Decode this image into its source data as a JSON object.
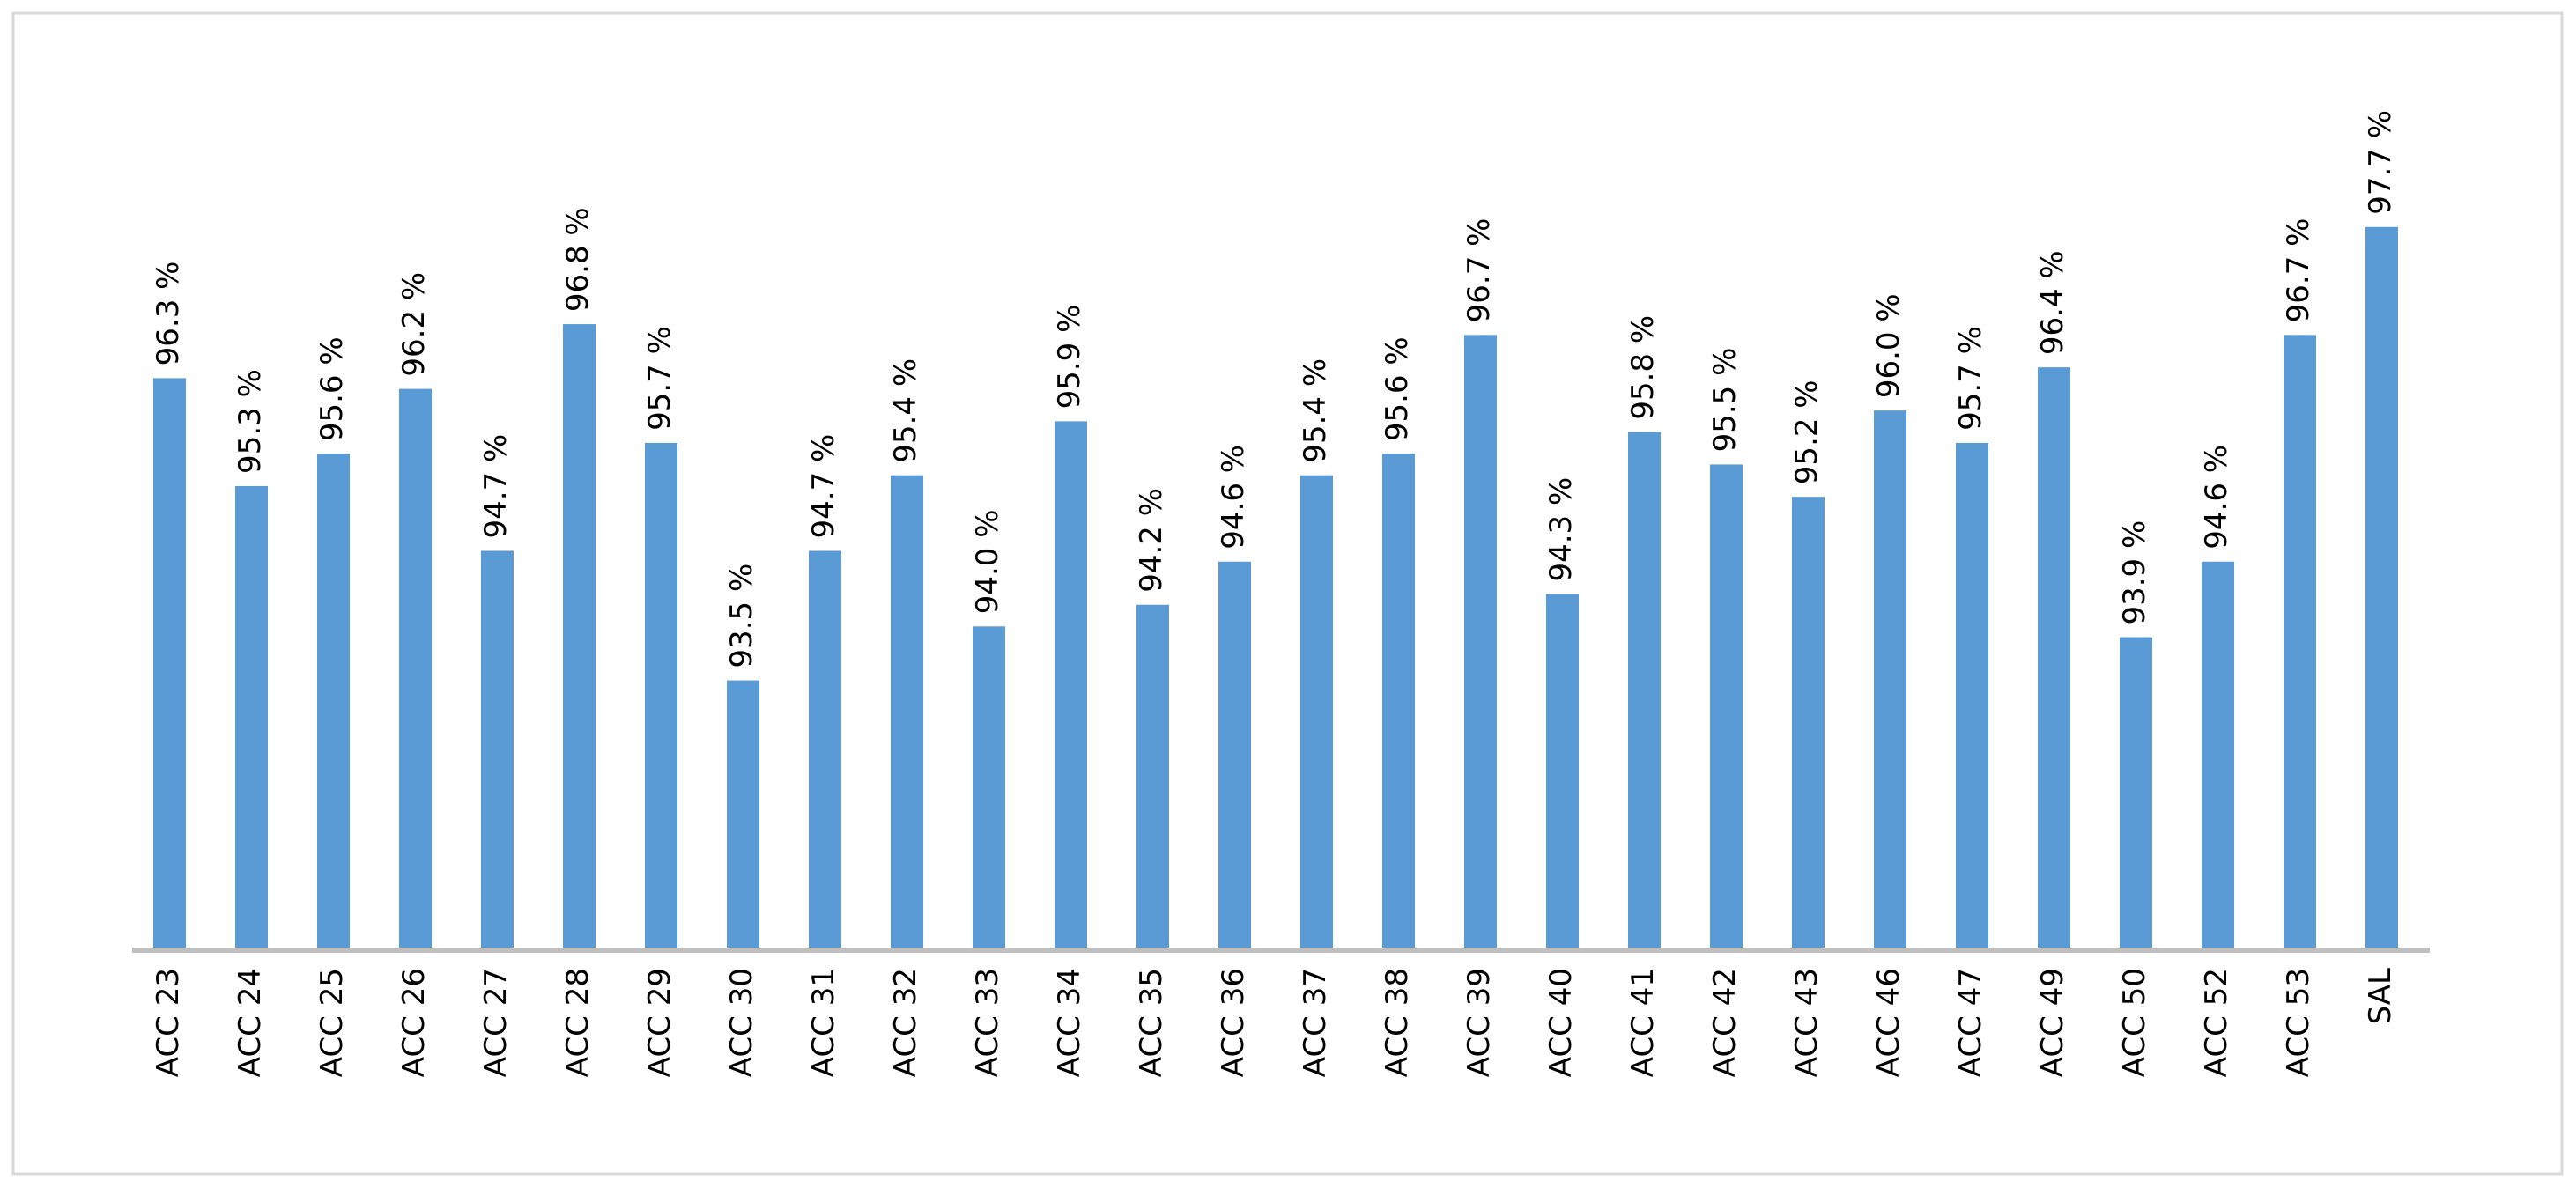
{
  "chart_data": {
    "type": "bar",
    "categories": [
      "ACC 23",
      "ACC 24",
      "ACC 25",
      "ACC 26",
      "ACC 27",
      "ACC 28",
      "ACC 29",
      "ACC 30",
      "ACC 31",
      "ACC 32",
      "ACC 33",
      "ACC 34",
      "ACC 35",
      "ACC 36",
      "ACC 37",
      "ACC 38",
      "ACC 39",
      "ACC 40",
      "ACC 41",
      "ACC 42",
      "ACC 43",
      "ACC 46",
      "ACC 47",
      "ACC 49",
      "ACC 50",
      "ACC 52",
      "ACC 53",
      "SAL"
    ],
    "values": [
      96.3,
      95.3,
      95.6,
      96.2,
      94.7,
      96.8,
      95.7,
      93.5,
      94.7,
      95.4,
      94.0,
      95.9,
      94.2,
      94.6,
      95.4,
      95.6,
      96.7,
      94.3,
      95.8,
      95.5,
      95.2,
      96.0,
      95.7,
      96.4,
      93.9,
      94.6,
      96.7,
      97.7
    ],
    "value_labels": [
      "96.3 %",
      "95.3 %",
      "95.6 %",
      "96.2 %",
      "94.7 %",
      "96.8 %",
      "95.7 %",
      "93.5 %",
      "94.7 %",
      "95.4 %",
      "94.0 %",
      "95.9 %",
      "94.2 %",
      "94.6 %",
      "95.4 %",
      "95.6 %",
      "96.7 %",
      "94.3 %",
      "95.8 %",
      "95.5 %",
      "95.2 %",
      "96.0 %",
      "95.7 %",
      "96.4 %",
      "93.9 %",
      "94.6 %",
      "96.7 %",
      "97.7 %"
    ],
    "color": "#5b9bd5",
    "ylim": [
      91,
      98
    ],
    "grid": false
  }
}
